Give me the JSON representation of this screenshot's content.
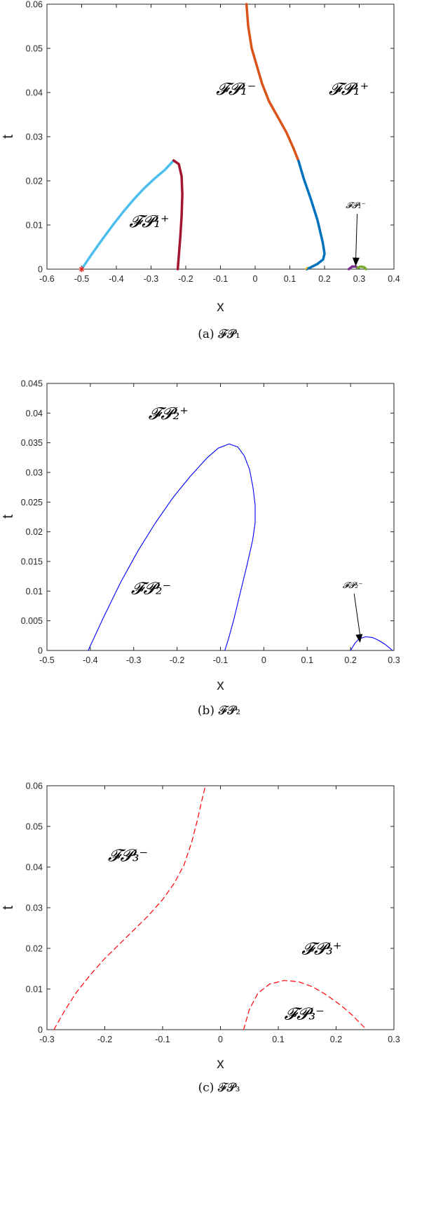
{
  "chart_data": [
    {
      "type": "line",
      "caption": "(a) 𝓕𝓟₁",
      "xlabel": "x",
      "ylabel": "t",
      "xlim": [
        -0.6,
        0.4
      ],
      "ylim": [
        0,
        0.06
      ],
      "xticks": [
        "-0.6",
        "-0.5",
        "-0.4",
        "-0.3",
        "-0.2",
        "-0.1",
        "0",
        "0.1",
        "0.2",
        "0.3",
        "0.4"
      ],
      "yticks": [
        "0",
        "0.01",
        "0.02",
        "0.03",
        "0.04",
        "0.05",
        "0.06"
      ],
      "regions": [
        {
          "label": "𝓕𝓟₁⁻",
          "x": -0.055,
          "t": 0.0395
        },
        {
          "label": "𝓕𝓟₁⁺",
          "x": 0.27,
          "t": 0.0395
        },
        {
          "label": "𝓕𝓟₁⁺",
          "x": -0.305,
          "t": 0.0095
        }
      ],
      "annotation": {
        "label": "𝓕𝓟₁⁻",
        "text_x": 0.29,
        "text_t": 0.0138,
        "arrow_to_x": 0.29,
        "arrow_to_t": 0.0007
      },
      "marker": {
        "x": -0.5,
        "t": 0.0,
        "color": "#e8241f"
      },
      "series": [
        {
          "color": "#4dbeee",
          "width": 3.5,
          "x": [
            -0.5,
            -0.47,
            -0.44,
            -0.41,
            -0.38,
            -0.35,
            -0.32,
            -0.29,
            -0.26,
            -0.235
          ],
          "y": [
            0,
            0.0035,
            0.0068,
            0.01,
            0.013,
            0.0158,
            0.0183,
            0.0205,
            0.0225,
            0.0246
          ]
        },
        {
          "color": "#a2142f",
          "width": 3.5,
          "x": [
            -0.235,
            -0.22,
            -0.212,
            -0.21,
            -0.212,
            -0.216,
            -0.22,
            -0.223
          ],
          "y": [
            0.0246,
            0.0238,
            0.021,
            0.017,
            0.012,
            0.007,
            0.003,
            0
          ]
        },
        {
          "color": "#d95319",
          "width": 3.5,
          "x": [
            -0.025,
            -0.02,
            -0.01,
            0.005,
            0.02,
            0.04,
            0.065,
            0.09,
            0.11,
            0.125
          ],
          "y": [
            0.06,
            0.055,
            0.05,
            0.046,
            0.042,
            0.038,
            0.0345,
            0.031,
            0.0275,
            0.0245
          ]
        },
        {
          "color": "#0072bd",
          "width": 3.5,
          "x": [
            0.125,
            0.14,
            0.16,
            0.18,
            0.195,
            0.2,
            0.196,
            0.18,
            0.16,
            0.148
          ],
          "y": [
            0.0245,
            0.0205,
            0.016,
            0.011,
            0.006,
            0.0035,
            0.0022,
            0.0012,
            0.0004,
            0
          ]
        },
        {
          "color": "#7e2f8e",
          "width": 3.5,
          "x": [
            0.27,
            0.28,
            0.29,
            0.295
          ],
          "y": [
            0,
            0.0006,
            0.0006,
            0.0003
          ]
        },
        {
          "color": "#77ac30",
          "width": 3.5,
          "x": [
            0.295,
            0.305,
            0.315,
            0.32
          ],
          "y": [
            0.0003,
            0.0006,
            0.0004,
            0
          ]
        },
        {
          "color": "#edb120",
          "width": 2,
          "x": [
            0.146,
            0.15
          ],
          "y": [
            0,
            0.0004
          ]
        }
      ]
    },
    {
      "type": "line",
      "caption": "(b) 𝓕𝓟₂",
      "xlabel": "x",
      "ylabel": "t",
      "xlim": [
        -0.5,
        0.3
      ],
      "ylim": [
        0,
        0.045
      ],
      "xticks": [
        "-0.5",
        "-0.4",
        "-0.3",
        "-0.2",
        "-0.1",
        "0",
        "0.1",
        "0.2",
        "0.3"
      ],
      "yticks": [
        "0",
        "0.005",
        "0.01",
        "0.015",
        "0.02",
        "0.025",
        "0.03",
        "0.035",
        "0.04",
        "0.045"
      ],
      "regions": [
        {
          "label": "𝓕𝓟₂⁺",
          "x": -0.22,
          "t": 0.039
        },
        {
          "label": "𝓕𝓟₂⁻",
          "x": -0.26,
          "t": 0.0095
        }
      ],
      "annotation": {
        "label": "𝓕𝓟₂⁻",
        "text_x": 0.205,
        "text_t": 0.0105,
        "arrow_to_x": 0.222,
        "arrow_to_t": 0.0013
      },
      "series": [
        {
          "color": "#0000ff",
          "width": 1.1,
          "x": [
            -0.405,
            -0.37,
            -0.33,
            -0.29,
            -0.25,
            -0.21,
            -0.17,
            -0.13,
            -0.105,
            -0.08,
            -0.06,
            -0.045,
            -0.033,
            -0.025,
            -0.02,
            -0.02,
            -0.026,
            -0.04,
            -0.055,
            -0.07,
            -0.082,
            -0.09
          ],
          "y": [
            0,
            0.0055,
            0.0115,
            0.0168,
            0.0215,
            0.0257,
            0.0293,
            0.0325,
            0.0341,
            0.0348,
            0.0343,
            0.0328,
            0.0305,
            0.0275,
            0.0245,
            0.0215,
            0.0185,
            0.014,
            0.0095,
            0.005,
            0.0018,
            0
          ]
        },
        {
          "color": "#0000ff",
          "width": 1.1,
          "x": [
            0.2,
            0.21,
            0.22,
            0.235,
            0.25,
            0.265,
            0.28,
            0.29,
            0.297
          ],
          "y": [
            0,
            0.0012,
            0.002,
            0.0023,
            0.0022,
            0.0017,
            0.001,
            0.0004,
            0
          ]
        }
      ]
    },
    {
      "type": "line",
      "caption": "(c) 𝓕𝓟₃",
      "xlabel": "x",
      "ylabel": "t",
      "xlim": [
        -0.3,
        0.3
      ],
      "ylim": [
        0,
        0.06
      ],
      "xticks": [
        "-0.3",
        "-0.2",
        "-0.1",
        "0",
        "0.1",
        "0.2",
        "0.3"
      ],
      "yticks": [
        "0",
        "0.01",
        "0.02",
        "0.03",
        "0.04",
        "0.05",
        "0.06"
      ],
      "regions": [
        {
          "label": "𝓕𝓟₃⁻",
          "x": -0.16,
          "t": 0.0415
        },
        {
          "label": "𝓕𝓟₃⁺",
          "x": 0.175,
          "t": 0.0185
        },
        {
          "label": "𝓕𝓟₃⁻",
          "x": 0.145,
          "t": 0.0025
        }
      ],
      "series": [
        {
          "color": "#ff0000",
          "width": 1.2,
          "dash": "7,5",
          "x": [
            -0.288,
            -0.27,
            -0.25,
            -0.225,
            -0.2,
            -0.175,
            -0.15,
            -0.125,
            -0.1,
            -0.08,
            -0.063,
            -0.05,
            -0.04,
            -0.032,
            -0.026
          ],
          "y": [
            0,
            0.0045,
            0.009,
            0.0135,
            0.0175,
            0.021,
            0.0245,
            0.028,
            0.032,
            0.036,
            0.0405,
            0.046,
            0.0515,
            0.0565,
            0.06
          ]
        },
        {
          "color": "#ff0000",
          "width": 1.2,
          "dash": "7,5",
          "x": [
            0.04,
            0.05,
            0.065,
            0.085,
            0.11,
            0.135,
            0.16,
            0.185,
            0.21,
            0.23,
            0.24,
            0.253
          ],
          "y": [
            0,
            0.005,
            0.009,
            0.0112,
            0.0121,
            0.0118,
            0.0105,
            0.0084,
            0.0058,
            0.0033,
            0.0018,
            0
          ]
        }
      ]
    }
  ]
}
